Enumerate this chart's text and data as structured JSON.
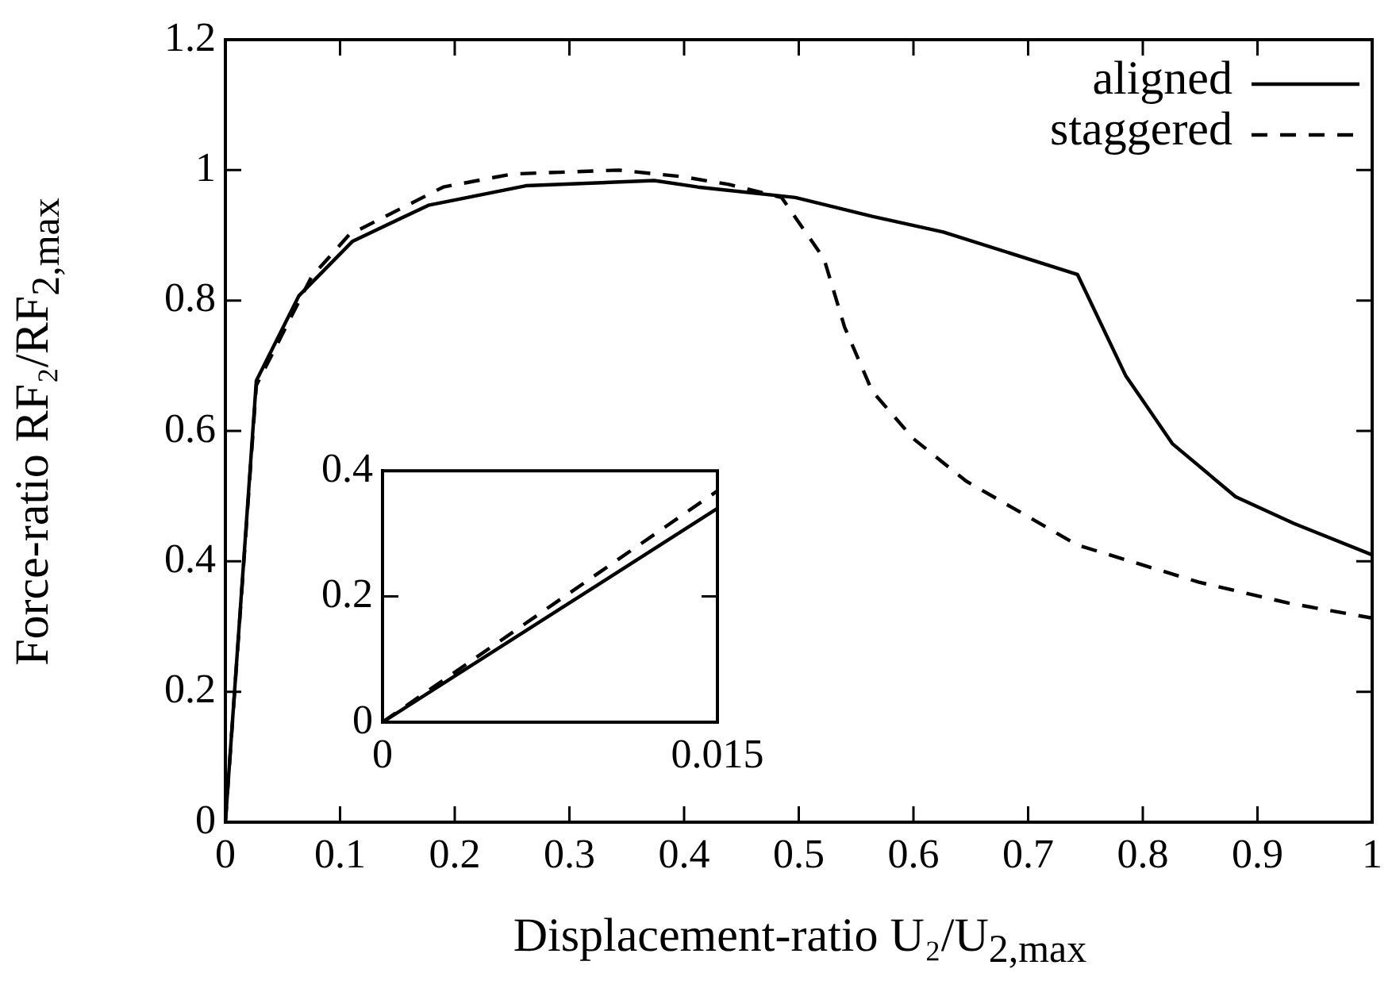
{
  "chart_data": [
    {
      "type": "line",
      "xlabel": "Displacement-ratio U₂/U$_{2,max}$",
      "ylabel": "Force-ratio RF₂/RF$_{2,max}$",
      "xlim": [
        0,
        1
      ],
      "ylim": [
        0,
        1.2
      ],
      "xticks": [
        0,
        0.1,
        0.2,
        0.3,
        0.4,
        0.5,
        0.6,
        0.7,
        0.8,
        0.9,
        1
      ],
      "yticks": [
        0,
        0.2,
        0.4,
        0.6,
        0.8,
        1,
        1.2
      ],
      "grid": false,
      "legend": "top right",
      "marker": "none",
      "series": [
        {
          "name": "aligned",
          "color": "#000000",
          "line_style": "solid",
          "x": [
            0,
            0.027,
            0.064,
            0.111,
            0.177,
            0.262,
            0.374,
            0.412,
            0.497,
            0.564,
            0.626,
            0.743,
            0.785,
            0.826,
            0.881,
            0.932,
            1
          ],
          "values": [
            0,
            0.677,
            0.807,
            0.891,
            0.946,
            0.976,
            0.984,
            0.974,
            0.958,
            0.929,
            0.905,
            0.84,
            0.685,
            0.58,
            0.499,
            0.458,
            0.41
          ]
        },
        {
          "name": "staggered",
          "color": "#000000",
          "line_style": "dashed",
          "x": [
            0,
            0.027,
            0.075,
            0.108,
            0.19,
            0.25,
            0.343,
            0.398,
            0.439,
            0.485,
            0.522,
            0.54,
            0.564,
            0.6,
            0.646,
            0.743,
            0.849,
            0.927,
            1
          ],
          "values": [
            0,
            0.67,
            0.836,
            0.901,
            0.974,
            0.994,
            1.0,
            0.99,
            0.978,
            0.958,
            0.864,
            0.759,
            0.661,
            0.588,
            0.523,
            0.425,
            0.368,
            0.336,
            0.313
          ]
        }
      ]
    },
    {
      "type": "line",
      "xlim": [
        0,
        0.015
      ],
      "ylim": [
        0,
        0.4
      ],
      "xticks": [
        0,
        0.015
      ],
      "yticks": [
        0,
        0.2,
        0.4
      ],
      "grid": false,
      "marker": "none",
      "series": [
        {
          "color": "#000000",
          "line_style": "solid",
          "x": [
            0,
            0.015
          ],
          "values": [
            0,
            0.34
          ]
        },
        {
          "color": "#000000",
          "line_style": "dashed",
          "x": [
            0,
            0.015
          ],
          "values": [
            0,
            0.368
          ]
        }
      ]
    }
  ]
}
